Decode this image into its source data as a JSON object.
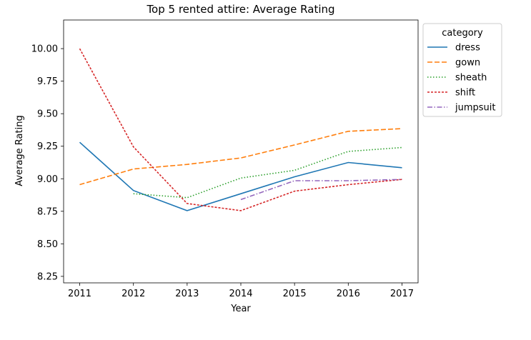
{
  "chart_data": {
    "type": "line",
    "title": "Top 5 rented attire: Average Rating",
    "xlabel": "Year",
    "ylabel": "Average Rating",
    "x": [
      2011,
      2012,
      2013,
      2014,
      2015,
      2016,
      2017
    ],
    "xlim": [
      2010.7,
      2017.3
    ],
    "ylim": [
      8.2,
      10.22
    ],
    "yticks": [
      "8.25",
      "8.50",
      "8.75",
      "9.00",
      "9.25",
      "9.50",
      "9.75",
      "10.00"
    ],
    "legend": {
      "title": "category",
      "position": "outside-top-right"
    },
    "grid": false,
    "series": [
      {
        "name": "dress",
        "color": "#1f77b4",
        "dash": "solid",
        "values": [
          9.28,
          8.91,
          8.755,
          8.885,
          9.015,
          9.125,
          9.085
        ]
      },
      {
        "name": "gown",
        "color": "#ff7f0e",
        "dash": "dashed",
        "values": [
          8.955,
          9.075,
          9.11,
          9.16,
          9.26,
          9.365,
          9.385
        ]
      },
      {
        "name": "sheath",
        "color": "#2ca02c",
        "dash": "dotted",
        "values": [
          null,
          8.885,
          8.855,
          9.005,
          9.065,
          9.21,
          9.24
        ]
      },
      {
        "name": "shift",
        "color": "#d62728",
        "dash": "dense-dashed",
        "values": [
          10.0,
          9.245,
          8.81,
          8.755,
          8.905,
          8.955,
          8.995
        ]
      },
      {
        "name": "jumpsuit",
        "color": "#9467bd",
        "dash": "dashdot",
        "values": [
          null,
          null,
          null,
          8.84,
          8.985,
          8.985,
          8.995
        ]
      }
    ]
  }
}
